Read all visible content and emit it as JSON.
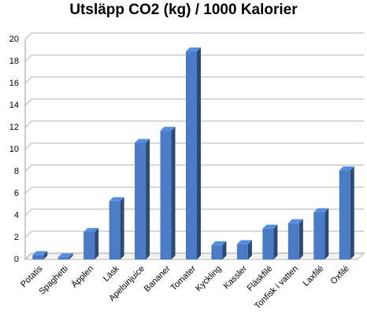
{
  "chart_data": {
    "type": "bar",
    "title": "Utsläpp CO2 (kg) / 1000 Kalorier",
    "categories": [
      "Potatis",
      "Spaghetti",
      "Äpplen",
      "Läsk",
      "Apelsinjuice",
      "Bananer",
      "Tomater",
      "Kyckling",
      "Kassler",
      "Fläskfilé",
      "Tonfisk i vatten",
      "Laxfilé",
      "Oxfilé"
    ],
    "values": [
      0.4,
      0.2,
      2.5,
      5.3,
      10.6,
      11.7,
      18.9,
      1.3,
      1.4,
      2.8,
      3.3,
      4.3,
      8.1
    ],
    "color": "#4a7bc4",
    "ylim": [
      0,
      20
    ],
    "yticks": [
      0,
      2,
      4,
      6,
      8,
      10,
      12,
      14,
      16,
      18,
      20
    ],
    "grid": true
  }
}
